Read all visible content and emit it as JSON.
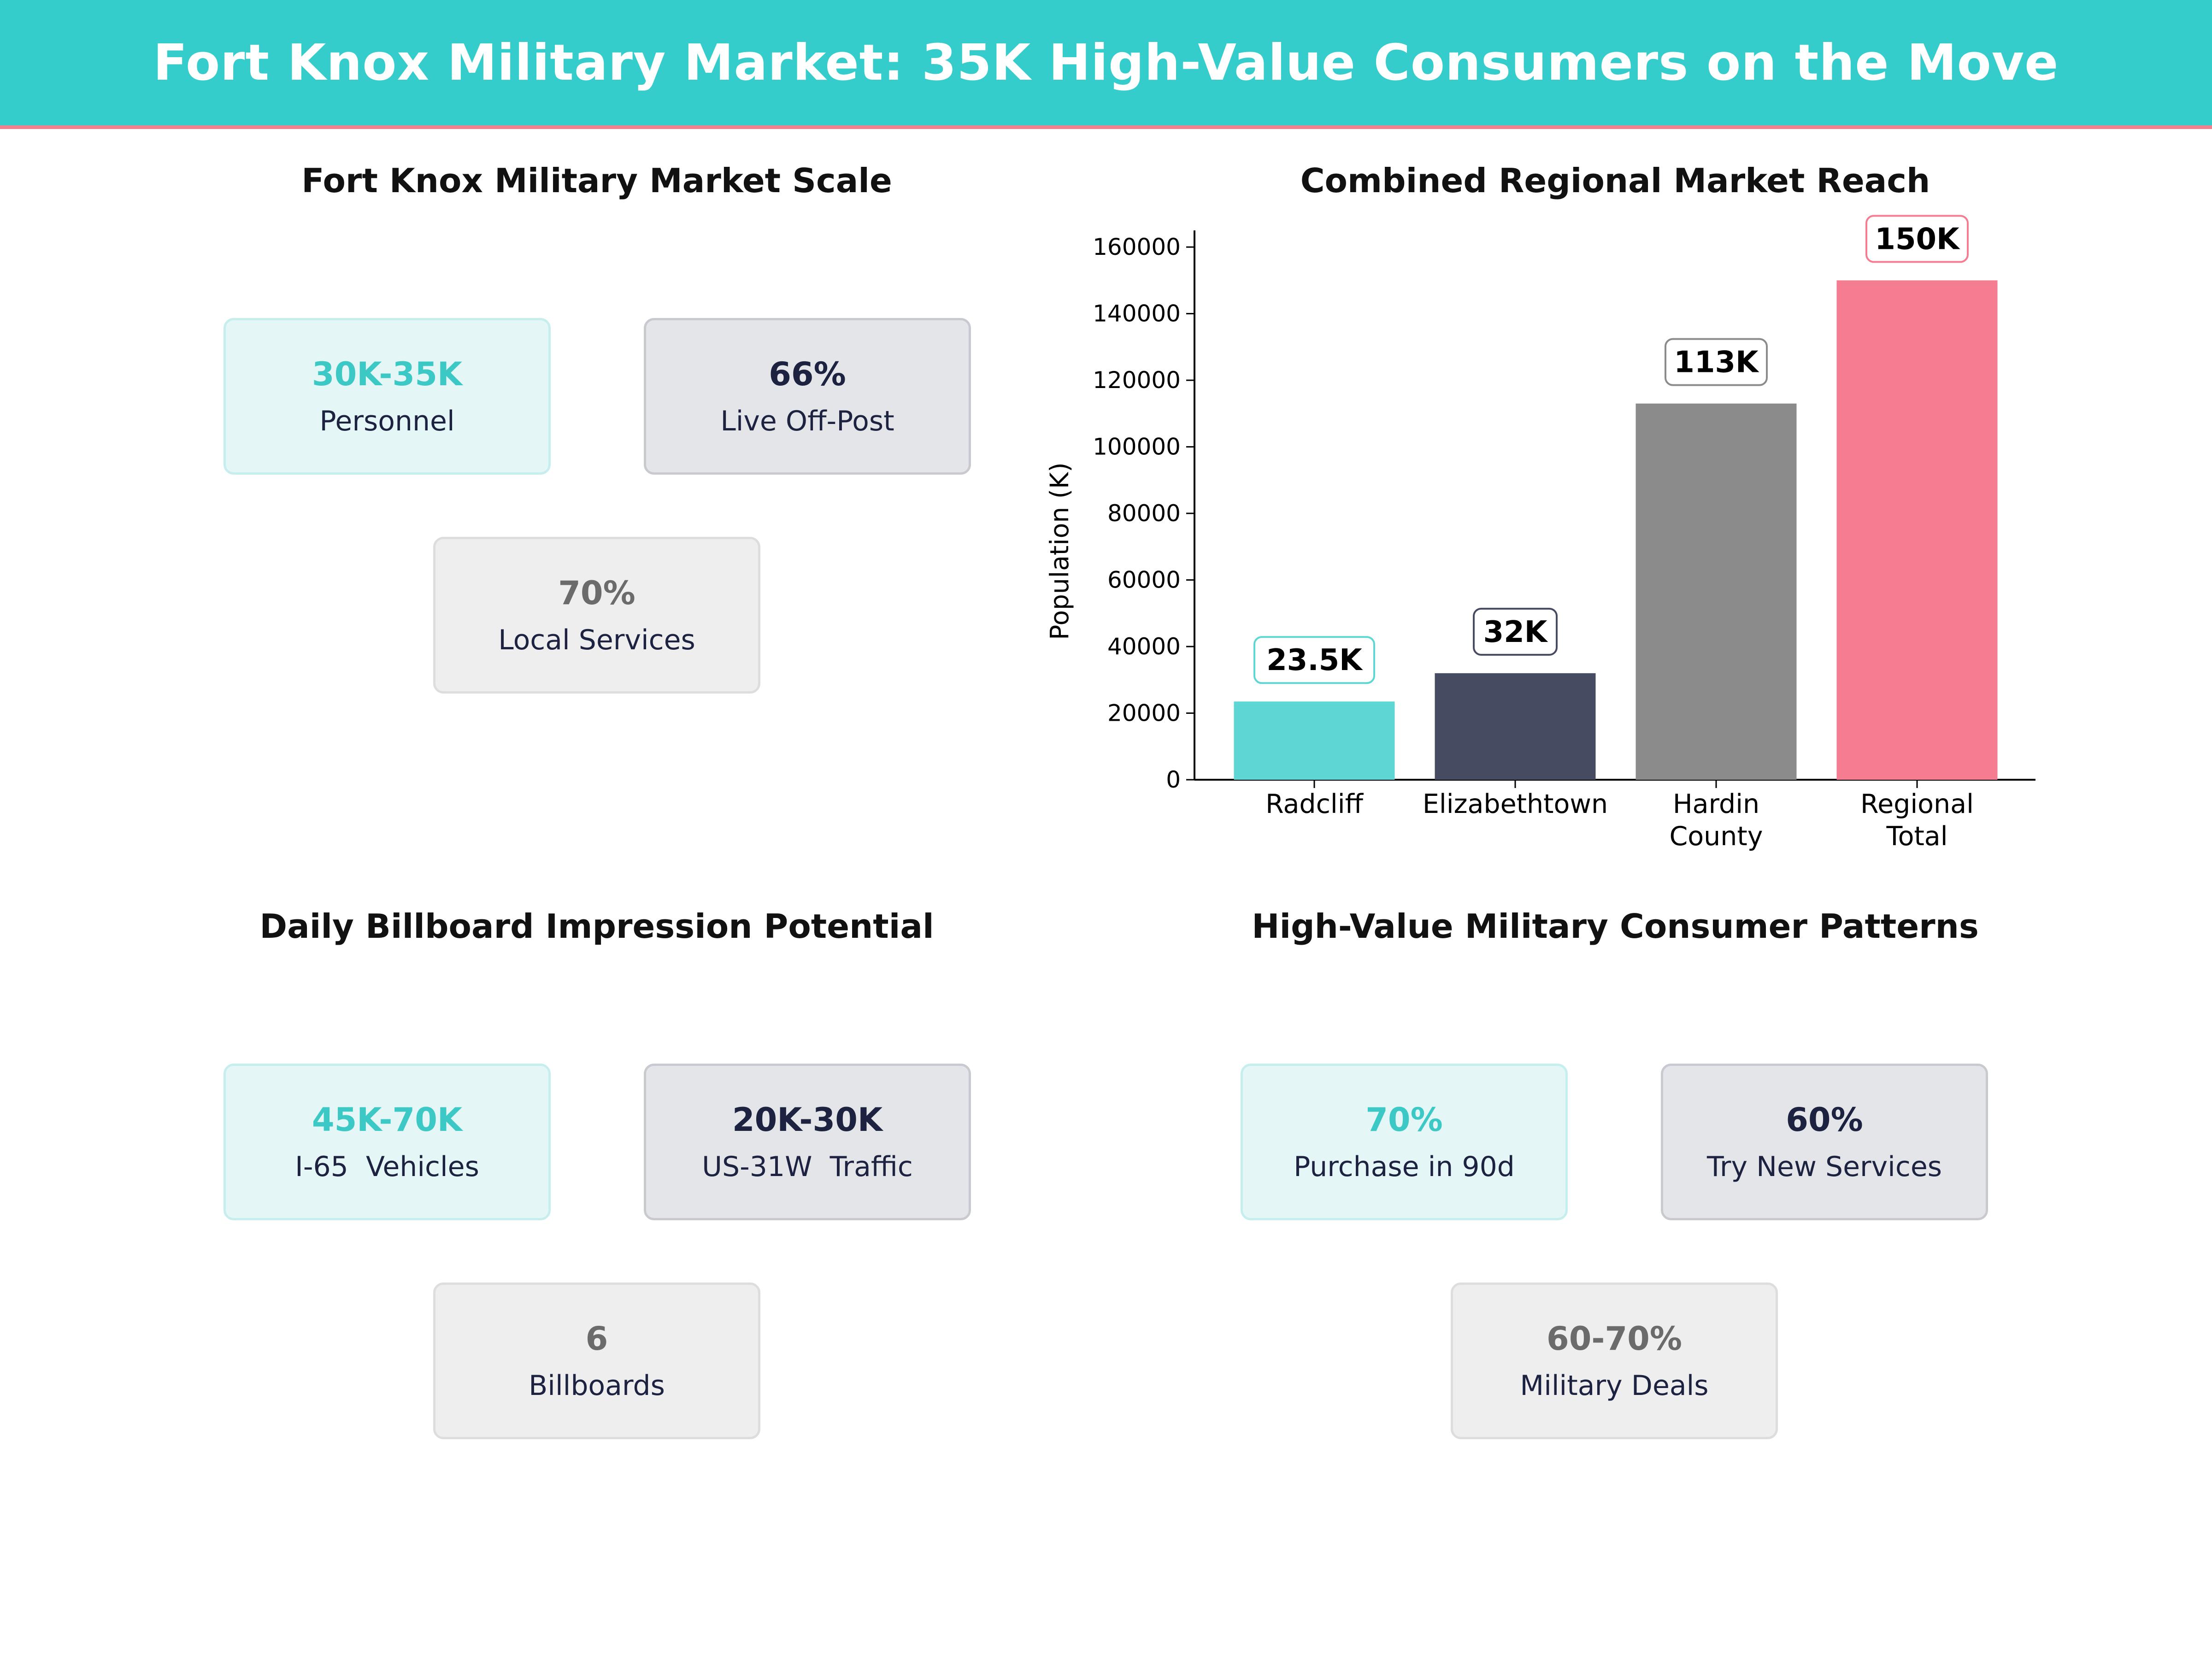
{
  "header": {
    "title": "Fort Knox Military Market: 35K High-Value Consumers on the Move"
  },
  "panels": {
    "market_scale": {
      "title": "Fort Knox Military Market Scale",
      "cards": [
        {
          "value": "30K-35K",
          "label": "Personnel"
        },
        {
          "value": "66%",
          "label": "Live Off-Post"
        },
        {
          "value": "70%",
          "label": "Local Services"
        }
      ]
    },
    "regional_reach": {
      "title": "Combined Regional Market Reach"
    },
    "billboard": {
      "title": "Daily Billboard Impression Potential",
      "cards": [
        {
          "value": "45K-70K",
          "label": "I-65  Vehicles"
        },
        {
          "value": "20K-30K",
          "label": "US-31W  Traffic"
        },
        {
          "value": "6",
          "label": "Billboards"
        }
      ]
    },
    "consumer_patterns": {
      "title": "High-Value Military Consumer Patterns",
      "cards": [
        {
          "value": "70%",
          "label": "Purchase in 90d"
        },
        {
          "value": "60%",
          "label": "Try New Services"
        },
        {
          "value": "60-70%",
          "label": "Military Deals"
        }
      ]
    }
  },
  "colors": {
    "banner": "#35cccc",
    "accent_line": "#f0818f",
    "teal": "#5dd6d4",
    "navy": "#474b62",
    "gray": "#8b8b8b",
    "pink": "#f47d91"
  },
  "chart_data": {
    "type": "bar",
    "title": "Combined Regional Market Reach",
    "ylabel": "Population (K)",
    "xlabel": "",
    "categories": [
      [
        "Radcliff"
      ],
      [
        "Elizabethtown"
      ],
      [
        "Hardin",
        "County"
      ],
      [
        "Regional",
        "Total"
      ]
    ],
    "values": [
      23500,
      32000,
      113000,
      150000
    ],
    "data_labels": [
      "23.5K",
      "32K",
      "113K",
      "150K"
    ],
    "bar_colors": [
      "#5dd6d4",
      "#474b62",
      "#8b8b8b",
      "#f47d91"
    ],
    "label_border_colors": [
      "#5dd6d4",
      "#474b62",
      "#8b8b8b",
      "#f47d91"
    ],
    "ylim": [
      0,
      165000
    ],
    "yticks": [
      0,
      20000,
      40000,
      60000,
      80000,
      100000,
      120000,
      140000,
      160000
    ],
    "grid": false,
    "legend": "none"
  }
}
